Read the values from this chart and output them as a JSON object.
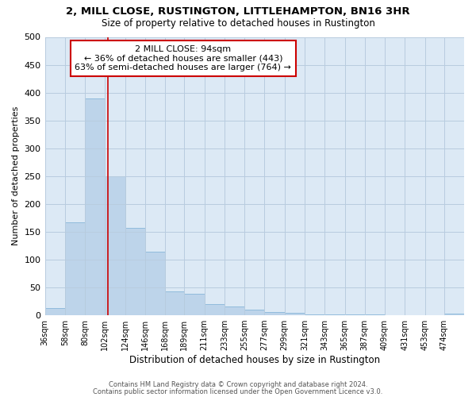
{
  "title": "2, MILL CLOSE, RUSTINGTON, LITTLEHAMPTON, BN16 3HR",
  "subtitle": "Size of property relative to detached houses in Rustington",
  "xlabel": "Distribution of detached houses by size in Rustington",
  "ylabel": "Number of detached properties",
  "bar_color": "#bdd4ea",
  "bar_edge_color": "#7aaed4",
  "background_color": "#ffffff",
  "plot_bg_color": "#dce9f5",
  "grid_color": "#b8ccdf",
  "bin_labels": [
    "36sqm",
    "58sqm",
    "80sqm",
    "102sqm",
    "124sqm",
    "146sqm",
    "168sqm",
    "189sqm",
    "211sqm",
    "233sqm",
    "255sqm",
    "277sqm",
    "299sqm",
    "321sqm",
    "343sqm",
    "365sqm",
    "387sqm",
    "409sqm",
    "431sqm",
    "453sqm",
    "474sqm"
  ],
  "bin_edges": [
    25,
    47,
    69,
    91,
    113,
    135,
    157,
    178,
    200,
    222,
    244,
    266,
    288,
    310,
    332,
    354,
    376,
    398,
    420,
    442,
    463,
    485
  ],
  "bar_heights": [
    13,
    167,
    390,
    250,
    157,
    114,
    43,
    39,
    20,
    16,
    10,
    6,
    5,
    1,
    1,
    1,
    1,
    0,
    0,
    0,
    3
  ],
  "vline_x": 94,
  "vline_color": "#cc0000",
  "ylim": [
    0,
    500
  ],
  "yticks": [
    0,
    50,
    100,
    150,
    200,
    250,
    300,
    350,
    400,
    450,
    500
  ],
  "annotation_title": "2 MILL CLOSE: 94sqm",
  "annotation_line1": "← 36% of detached houses are smaller (443)",
  "annotation_line2": "63% of semi-detached houses are larger (764) →",
  "annotation_box_color": "#ffffff",
  "annotation_box_edge": "#cc0000",
  "footer_line1": "Contains HM Land Registry data © Crown copyright and database right 2024.",
  "footer_line2": "Contains public sector information licensed under the Open Government Licence v3.0."
}
